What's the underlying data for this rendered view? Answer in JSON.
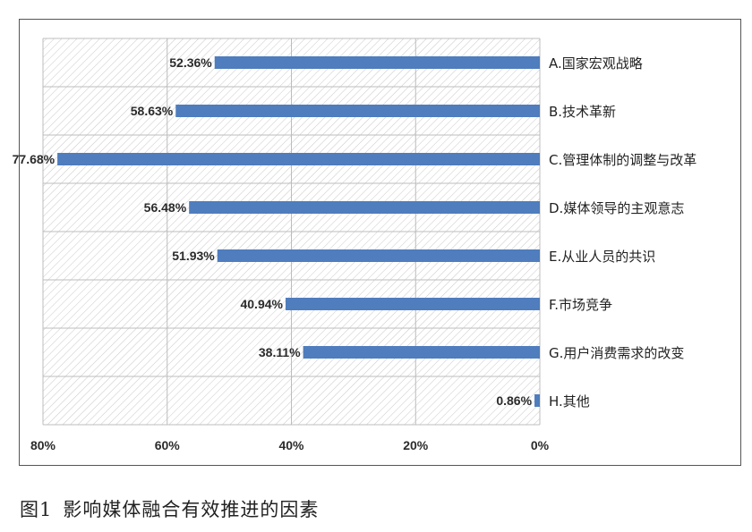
{
  "chart_data": {
    "type": "bar",
    "orientation": "horizontal",
    "x_axis_reversed": true,
    "categories": [
      "A.国家宏观战略",
      "B.技术革新",
      "C.管理体制的调整与改革",
      "D.媒体领导的主观意志",
      "E.从业人员的共识",
      "F.市场竞争",
      "G.用户消费需求的改变",
      "H.其他"
    ],
    "values": [
      52.36,
      58.63,
      77.68,
      56.48,
      51.93,
      40.94,
      38.11,
      0.86
    ],
    "value_labels": [
      "52.36%",
      "58.63%",
      "77.68%",
      "56.48%",
      "51.93%",
      "40.94%",
      "38.11%",
      "0.86%"
    ],
    "xlim": [
      0,
      80
    ],
    "x_ticks": [
      "80%",
      "60%",
      "40%",
      "20%",
      "0%"
    ],
    "x_tick_values": [
      80,
      60,
      40,
      20,
      0
    ],
    "grid": true,
    "bar_color": "#4f7dbd"
  },
  "caption": {
    "figure_number": "图1",
    "title": "影响媒体融合有效推进的因素"
  }
}
